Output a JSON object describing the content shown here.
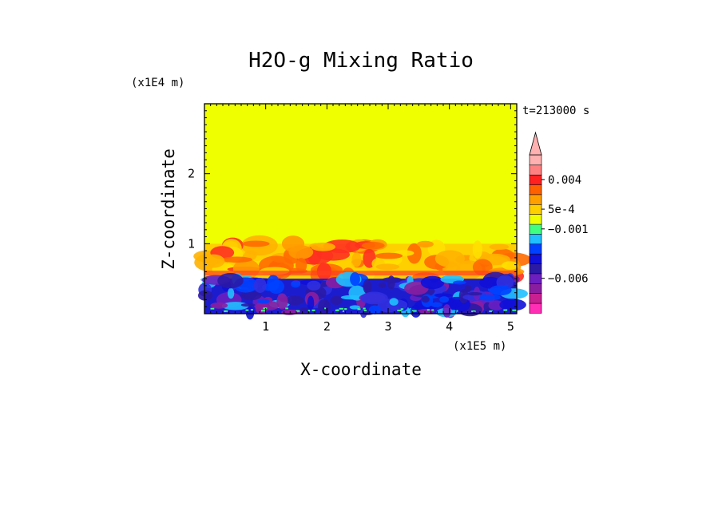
{
  "chart_data": {
    "type": "heatmap",
    "title": "H2O-g Mixing Ratio",
    "xlabel": "X-coordinate",
    "ylabel": "Z-coordinate",
    "x_scale_label": "(x1E5 m)",
    "y_scale_label": "(x1E4 m)",
    "time_label": "t=213000 s",
    "xlim": [
      0,
      5.1
    ],
    "ylim": [
      0,
      3.0
    ],
    "x_ticks": [
      {
        "value": 1,
        "label": "1"
      },
      {
        "value": 2,
        "label": "2"
      },
      {
        "value": 3,
        "label": "3"
      },
      {
        "value": 4,
        "label": "4"
      },
      {
        "value": 5,
        "label": "5"
      }
    ],
    "y_ticks": [
      {
        "value": 1,
        "label": "1"
      },
      {
        "value": 2,
        "label": "2"
      }
    ],
    "background_level_color": "#f0ff00",
    "layers": [
      {
        "z_top": 1.0,
        "z_bottom": 0.5,
        "description_color": "#ffb300",
        "band": "orange-red turbulent layer"
      },
      {
        "z_top": 0.5,
        "z_bottom": 0.0,
        "description_color": "#1c1ccf",
        "band": "blue-purple turbulent layer"
      }
    ],
    "colorbar": {
      "colors": [
        "#ff2eb4",
        "#c82090",
        "#8a1ea0",
        "#6b1fc0",
        "#2a1aa6",
        "#1010d8",
        "#0040ff",
        "#20c0ff",
        "#40ff80",
        "#f0ff00",
        "#ffd000",
        "#ffa000",
        "#ff6000",
        "#ff2020",
        "#ff8080",
        "#ffb0b0"
      ],
      "tick_labels": [
        {
          "label": "0.004",
          "index": 13
        },
        {
          "label": "5e-4",
          "index": 10
        },
        {
          "label": "−0.001",
          "index": 8
        },
        {
          "label": "−0.006",
          "index": 3
        }
      ]
    }
  }
}
